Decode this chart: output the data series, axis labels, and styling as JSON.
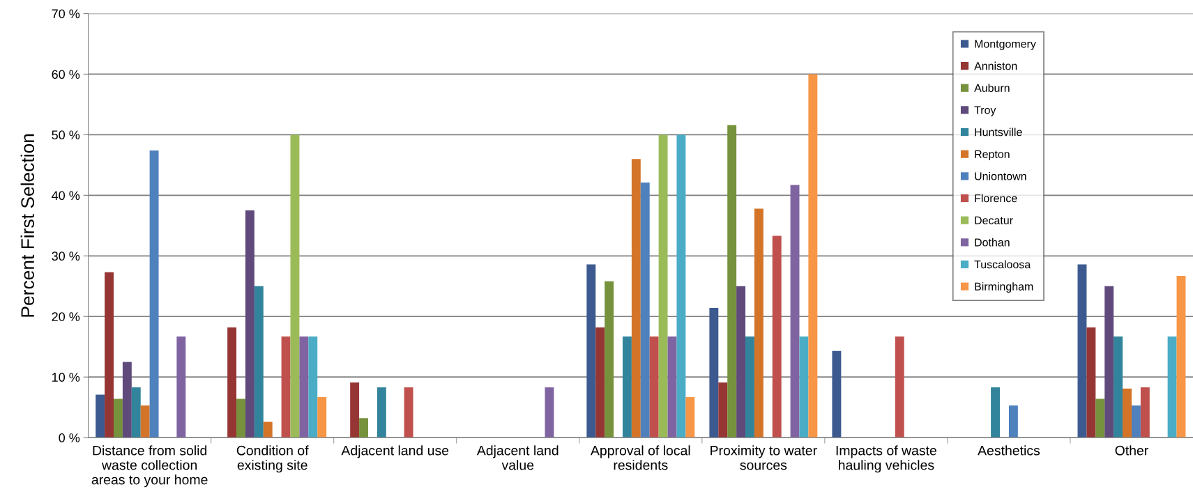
{
  "chart_data": {
    "type": "bar",
    "ylabel": "Percent First Selection",
    "categories": [
      "Distance from solid\nwaste collection\nareas to your home",
      "Condition of\nexisting site",
      "Adjacent land use",
      "Adjacent land\nvalue",
      "Approval of local\nresidents",
      "Proximity to water\nsources",
      "Impacts of waste\nhauling vehicles",
      "Aesthetics",
      "Other"
    ],
    "series": [
      {
        "name": "Montgomery",
        "color": "#3c5a8f",
        "values": [
          7.1,
          0,
          0,
          0,
          28.6,
          21.4,
          14.3,
          0,
          28.6
        ]
      },
      {
        "name": "Anniston",
        "color": "#963634",
        "values": [
          27.3,
          18.2,
          9.1,
          0,
          18.2,
          9.1,
          0,
          0,
          18.2
        ]
      },
      {
        "name": "Auburn",
        "color": "#76923c",
        "values": [
          6.4,
          6.4,
          3.2,
          0,
          25.8,
          51.6,
          0,
          0,
          6.4
        ]
      },
      {
        "name": "Troy",
        "color": "#5f4a7b",
        "values": [
          12.5,
          37.5,
          0,
          0,
          0,
          25,
          0,
          0,
          25
        ]
      },
      {
        "name": "Huntsville",
        "color": "#31849b",
        "values": [
          8.3,
          25,
          8.3,
          0,
          16.7,
          16.7,
          0,
          8.3,
          16.7
        ]
      },
      {
        "name": "Repton",
        "color": "#d47428",
        "values": [
          5.3,
          2.6,
          0,
          0,
          46,
          37.8,
          0,
          0,
          8.1
        ]
      },
      {
        "name": "Uniontown",
        "color": "#4f81bd",
        "values": [
          47.4,
          0,
          0,
          0,
          42.1,
          0,
          0,
          5.3,
          5.3
        ]
      },
      {
        "name": "Florence",
        "color": "#c0504d",
        "values": [
          0,
          16.7,
          8.3,
          0,
          16.7,
          33.3,
          16.7,
          0,
          8.3
        ]
      },
      {
        "name": "Decatur",
        "color": "#9bbb59",
        "values": [
          0,
          50,
          0,
          0,
          50,
          0,
          0,
          0,
          0
        ]
      },
      {
        "name": "Dothan",
        "color": "#8064a2",
        "values": [
          16.7,
          16.7,
          0,
          8.3,
          16.7,
          41.7,
          0,
          0,
          0
        ]
      },
      {
        "name": "Tuscaloosa",
        "color": "#4bacc6",
        "values": [
          0,
          16.7,
          0,
          0,
          50,
          16.7,
          0,
          0,
          16.7
        ]
      },
      {
        "name": "Birmingham",
        "color": "#f79646",
        "values": [
          0,
          6.7,
          0,
          0,
          6.7,
          60,
          0,
          0,
          26.7
        ]
      }
    ],
    "ylim": [
      0,
      70
    ],
    "yticks": [
      {
        "value": 0,
        "label": "0 %"
      },
      {
        "value": 10,
        "label": "10 %"
      },
      {
        "value": 20,
        "label": "20 %"
      },
      {
        "value": 30,
        "label": "30 %"
      },
      {
        "value": 40,
        "label": "40 %"
      },
      {
        "value": 50,
        "label": "50 %"
      },
      {
        "value": 60,
        "label": "60 %"
      },
      {
        "value": 70,
        "label": "70 %"
      }
    ],
    "grid": "y",
    "legend": "top right"
  }
}
